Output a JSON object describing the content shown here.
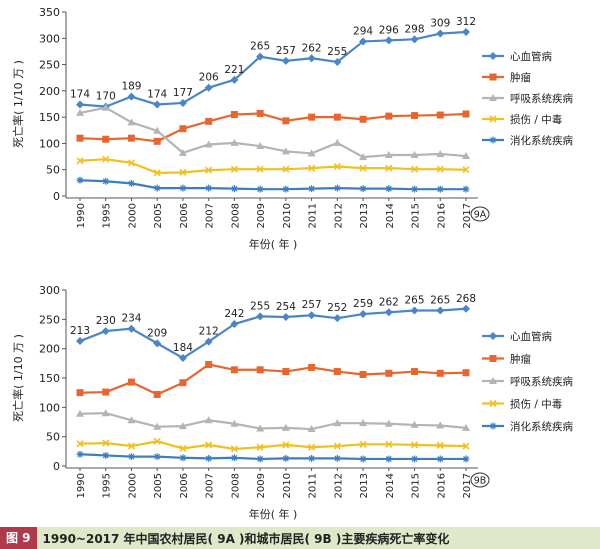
{
  "caption": {
    "label": "图 9",
    "title": "1990~2017 年中国农村居民( 9A )和城市居民( 9B )主要疾病死亡率变化"
  },
  "chart_data": [
    {
      "type": "line",
      "panel_label": "9A",
      "xlabel": "年份( 年 )",
      "ylabel": "死亡率( 1/10 万 )",
      "ylim": [
        0,
        350
      ],
      "yticks": [
        0,
        50,
        100,
        150,
        200,
        250,
        300,
        350
      ],
      "grid": false,
      "legend": "right",
      "categories": [
        "1990",
        "1995",
        "2000",
        "2005",
        "2006",
        "2007",
        "2008",
        "2009",
        "2010",
        "2011",
        "2012",
        "2013",
        "2014",
        "2015",
        "2016",
        "2017"
      ],
      "series": [
        {
          "name": "心血管病",
          "color": "#4a86c5",
          "marker": "diamond",
          "values": [
            174,
            170,
            189,
            174,
            177,
            206,
            221,
            265,
            257,
            262,
            255,
            294,
            296,
            298,
            309,
            312
          ],
          "labels": [
            "174",
            "170",
            "189",
            "174",
            "177",
            "206",
            "221",
            "265",
            "257",
            "262",
            "255",
            "294",
            "296",
            "298",
            "309",
            "312"
          ]
        },
        {
          "name": "肿瘤",
          "color": "#e8662d",
          "marker": "square",
          "values": [
            110,
            108,
            110,
            104,
            128,
            142,
            155,
            157,
            143,
            150,
            150,
            146,
            152,
            153,
            154,
            156
          ]
        },
        {
          "name": "呼吸系统疾病",
          "color": "#b4b4b4",
          "marker": "triangle",
          "values": [
            158,
            168,
            140,
            124,
            82,
            98,
            101,
            95,
            85,
            81,
            101,
            74,
            78,
            78,
            80,
            76
          ]
        },
        {
          "name": "损伤 / 中毒",
          "color": "#f0c020",
          "marker": "x",
          "values": [
            67,
            70,
            63,
            44,
            45,
            49,
            51,
            51,
            51,
            53,
            56,
            53,
            53,
            51,
            51,
            50
          ]
        },
        {
          "name": "消化系统疾病",
          "color": "#3a7ec0",
          "marker": "star",
          "values": [
            30,
            28,
            24,
            15,
            15,
            15,
            14,
            13,
            13,
            14,
            15,
            14,
            14,
            13,
            13,
            13
          ]
        }
      ]
    },
    {
      "type": "line",
      "panel_label": "9B",
      "xlabel": "年份( 年 )",
      "ylabel": "死亡率( 1/10 万 )",
      "ylim": [
        0,
        300
      ],
      "yticks": [
        0,
        50,
        100,
        150,
        200,
        250,
        300
      ],
      "grid": false,
      "legend": "right",
      "categories": [
        "1990",
        "1995",
        "2000",
        "2005",
        "2006",
        "2007",
        "2008",
        "2009",
        "2010",
        "2011",
        "2012",
        "2013",
        "2014",
        "2015",
        "2016",
        "2017"
      ],
      "series": [
        {
          "name": "心血管病",
          "color": "#4a86c5",
          "marker": "diamond",
          "values": [
            213,
            230,
            234,
            209,
            184,
            212,
            242,
            255,
            254,
            257,
            252,
            259,
            262,
            265,
            265,
            268
          ],
          "labels": [
            "213",
            "230",
            "234",
            "209",
            "184",
            "212",
            "242",
            "255",
            "254",
            "257",
            "252",
            "259",
            "262",
            "265",
            "265",
            "268"
          ]
        },
        {
          "name": "肿瘤",
          "color": "#e8662d",
          "marker": "square",
          "values": [
            125,
            126,
            143,
            122,
            142,
            173,
            164,
            164,
            161,
            168,
            161,
            156,
            158,
            161,
            158,
            159
          ]
        },
        {
          "name": "呼吸系统疾病",
          "color": "#b4b4b4",
          "marker": "triangle",
          "values": [
            89,
            90,
            78,
            67,
            68,
            78,
            72,
            64,
            65,
            63,
            73,
            73,
            72,
            70,
            69,
            65
          ]
        },
        {
          "name": "损伤 / 中毒",
          "color": "#f0c020",
          "marker": "x",
          "values": [
            38,
            39,
            34,
            42,
            30,
            36,
            29,
            32,
            36,
            32,
            34,
            37,
            37,
            36,
            35,
            34
          ]
        },
        {
          "name": "消化系统疾病",
          "color": "#3a7ec0",
          "marker": "star",
          "values": [
            20,
            18,
            16,
            16,
            14,
            13,
            14,
            12,
            13,
            13,
            13,
            12,
            12,
            12,
            12,
            12
          ]
        }
      ]
    }
  ]
}
